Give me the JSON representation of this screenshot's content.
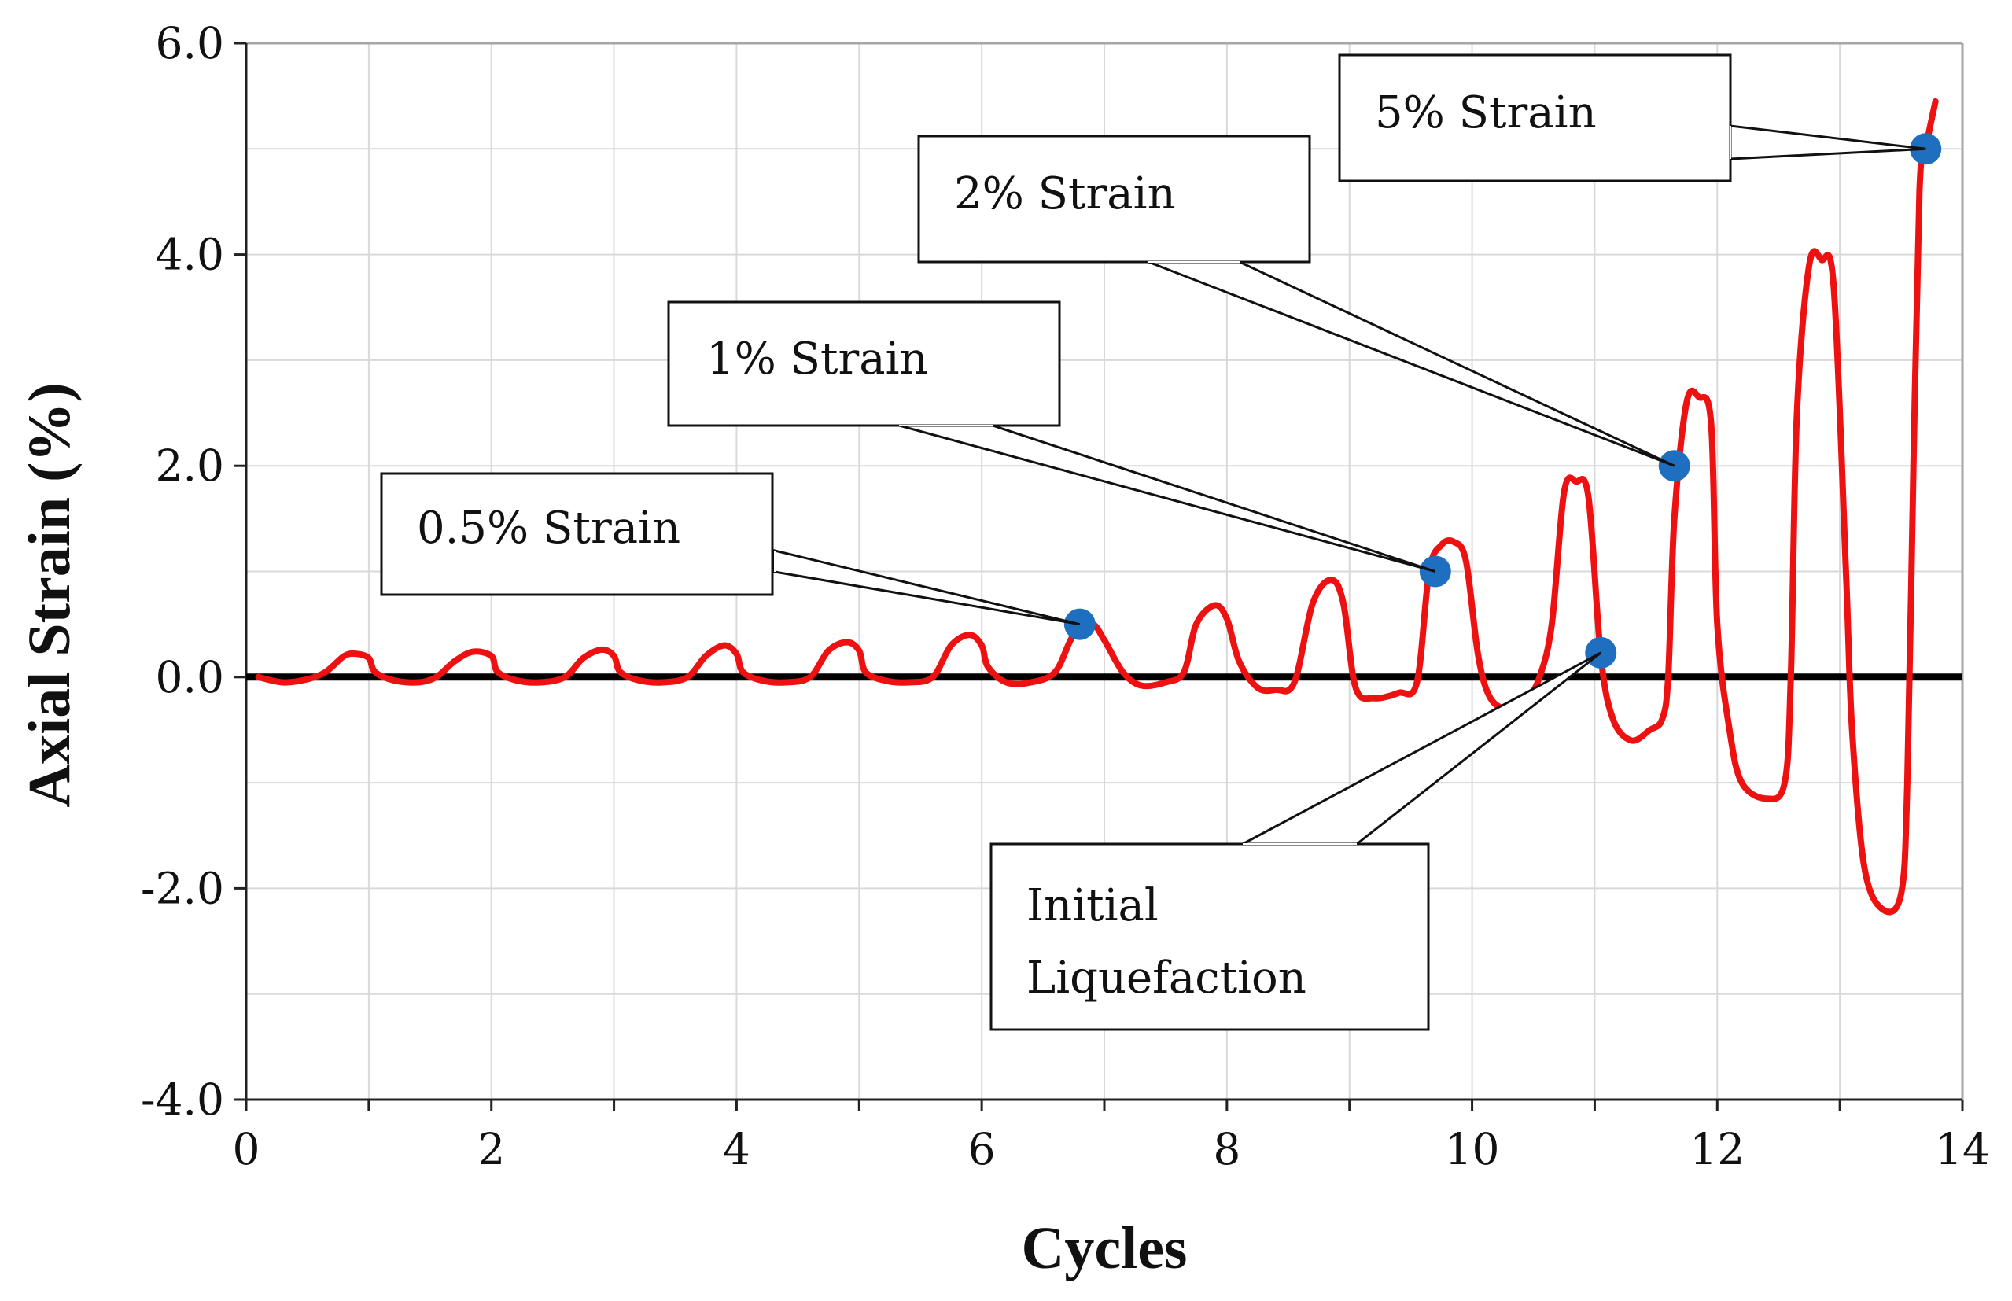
{
  "chart_data": {
    "type": "line",
    "title": "",
    "xlabel": "Cycles",
    "ylabel": "Axial Strain (%)",
    "xlim": [
      0,
      14
    ],
    "ylim": [
      -4.0,
      6.0
    ],
    "x_ticks": [
      "0",
      "2",
      "4",
      "6",
      "8",
      "10",
      "12",
      "14"
    ],
    "y_ticks": [
      "-4.0",
      "-2.0",
      "0.0",
      "2.0",
      "4.0",
      "6.0"
    ],
    "grid": true,
    "series": [
      {
        "name": "Axial strain",
        "color": "#ee1111",
        "points": [
          [
            0.1,
            0.0
          ],
          [
            0.3,
            -0.05
          ],
          [
            0.5,
            -0.02
          ],
          [
            0.65,
            0.05
          ],
          [
            0.8,
            0.2
          ],
          [
            0.9,
            0.22
          ],
          [
            1.0,
            0.18
          ],
          [
            1.05,
            0.05
          ],
          [
            1.2,
            -0.03
          ],
          [
            1.4,
            -0.05
          ],
          [
            1.55,
            0.0
          ],
          [
            1.7,
            0.15
          ],
          [
            1.85,
            0.24
          ],
          [
            2.0,
            0.2
          ],
          [
            2.05,
            0.05
          ],
          [
            2.2,
            -0.03
          ],
          [
            2.4,
            -0.05
          ],
          [
            2.6,
            0.0
          ],
          [
            2.75,
            0.18
          ],
          [
            2.9,
            0.26
          ],
          [
            3.0,
            0.2
          ],
          [
            3.05,
            0.05
          ],
          [
            3.2,
            -0.03
          ],
          [
            3.4,
            -0.05
          ],
          [
            3.6,
            0.0
          ],
          [
            3.75,
            0.2
          ],
          [
            3.9,
            0.3
          ],
          [
            4.0,
            0.22
          ],
          [
            4.05,
            0.05
          ],
          [
            4.2,
            -0.03
          ],
          [
            4.4,
            -0.05
          ],
          [
            4.6,
            0.0
          ],
          [
            4.75,
            0.25
          ],
          [
            4.9,
            0.33
          ],
          [
            5.0,
            0.25
          ],
          [
            5.05,
            0.05
          ],
          [
            5.2,
            -0.03
          ],
          [
            5.4,
            -0.05
          ],
          [
            5.6,
            0.0
          ],
          [
            5.75,
            0.3
          ],
          [
            5.9,
            0.4
          ],
          [
            6.0,
            0.3
          ],
          [
            6.05,
            0.1
          ],
          [
            6.2,
            -0.05
          ],
          [
            6.4,
            -0.05
          ],
          [
            6.6,
            0.05
          ],
          [
            6.75,
            0.4
          ],
          [
            6.9,
            0.5
          ],
          [
            7.0,
            0.35
          ],
          [
            7.15,
            0.05
          ],
          [
            7.3,
            -0.08
          ],
          [
            7.5,
            -0.05
          ],
          [
            7.65,
            0.05
          ],
          [
            7.75,
            0.5
          ],
          [
            7.9,
            0.68
          ],
          [
            8.0,
            0.55
          ],
          [
            8.1,
            0.15
          ],
          [
            8.25,
            -0.1
          ],
          [
            8.4,
            -0.12
          ],
          [
            8.55,
            -0.05
          ],
          [
            8.7,
            0.7
          ],
          [
            8.85,
            0.92
          ],
          [
            8.95,
            0.7
          ],
          [
            9.05,
            -0.1
          ],
          [
            9.2,
            -0.2
          ],
          [
            9.4,
            -0.15
          ],
          [
            9.55,
            -0.05
          ],
          [
            9.65,
            1.0
          ],
          [
            9.75,
            1.25
          ],
          [
            9.85,
            1.28
          ],
          [
            9.95,
            1.1
          ],
          [
            10.05,
            0.2
          ],
          [
            10.15,
            -0.2
          ],
          [
            10.3,
            -0.3
          ],
          [
            10.45,
            -0.2
          ],
          [
            10.55,
            0.0
          ],
          [
            10.65,
            0.5
          ],
          [
            10.75,
            1.75
          ],
          [
            10.85,
            1.85
          ],
          [
            10.95,
            1.7
          ],
          [
            11.05,
            0.2
          ],
          [
            11.15,
            -0.4
          ],
          [
            11.3,
            -0.6
          ],
          [
            11.45,
            -0.5
          ],
          [
            11.55,
            -0.4
          ],
          [
            11.6,
            0.0
          ],
          [
            11.65,
            1.5
          ],
          [
            11.75,
            2.6
          ],
          [
            11.85,
            2.65
          ],
          [
            11.95,
            2.4
          ],
          [
            12.0,
            0.5
          ],
          [
            12.1,
            -0.5
          ],
          [
            12.2,
            -1.0
          ],
          [
            12.4,
            -1.15
          ],
          [
            12.55,
            -1.0
          ],
          [
            12.6,
            0.0
          ],
          [
            12.65,
            2.5
          ],
          [
            12.75,
            3.9
          ],
          [
            12.85,
            3.95
          ],
          [
            12.95,
            3.7
          ],
          [
            13.05,
            1.0
          ],
          [
            13.1,
            -0.5
          ],
          [
            13.2,
            -1.8
          ],
          [
            13.35,
            -2.2
          ],
          [
            13.5,
            -2.05
          ],
          [
            13.55,
            -1.0
          ],
          [
            13.6,
            2.0
          ],
          [
            13.65,
            4.6
          ],
          [
            13.7,
            5.0
          ],
          [
            13.78,
            5.45
          ]
        ]
      }
    ],
    "reference_line": {
      "y": 0.0,
      "color": "#000000"
    },
    "markers": [
      {
        "x": 6.8,
        "y": 0.5,
        "color": "#1f6fc0"
      },
      {
        "x": 9.7,
        "y": 1.0,
        "color": "#1f6fc0"
      },
      {
        "x": 11.05,
        "y": 0.23,
        "color": "#1f6fc0"
      },
      {
        "x": 11.65,
        "y": 2.0,
        "color": "#1f6fc0"
      },
      {
        "x": 13.7,
        "y": 5.0,
        "color": "#1f6fc0"
      }
    ],
    "annotations": [
      {
        "lines": [
          "0.5% Strain"
        ],
        "target_marker": 0
      },
      {
        "lines": [
          "1% Strain"
        ],
        "target_marker": 1
      },
      {
        "lines": [
          "2% Strain"
        ],
        "target_marker": 3
      },
      {
        "lines": [
          "5% Strain"
        ],
        "target_marker": 4
      },
      {
        "lines": [
          "Initial",
          "Liquefaction"
        ],
        "target_marker": 2
      }
    ]
  }
}
